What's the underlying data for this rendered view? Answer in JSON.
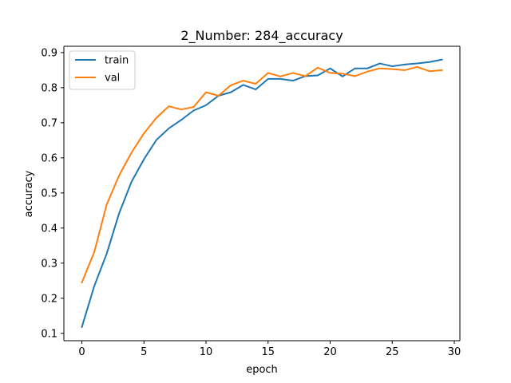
{
  "chart_data": {
    "type": "line",
    "title": "2_Number: 284_accuracy",
    "xlabel": "epoch",
    "ylabel": "accuracy",
    "xlim": [
      -1.45,
      30.45
    ],
    "ylim": [
      0.079,
      0.918
    ],
    "x_ticks": [
      0,
      5,
      10,
      15,
      20,
      25,
      30
    ],
    "y_ticks": [
      0.1,
      0.2,
      0.3,
      0.4,
      0.5,
      0.6,
      0.7,
      0.8,
      0.9
    ],
    "x_tick_labels": [
      "0",
      "5",
      "10",
      "15",
      "20",
      "25",
      "30"
    ],
    "y_tick_labels": [
      "0.1",
      "0.2",
      "0.3",
      "0.4",
      "0.5",
      "0.6",
      "0.7",
      "0.8",
      "0.9"
    ],
    "grid": false,
    "legend_position": "top-left",
    "x": [
      0,
      1,
      2,
      3,
      4,
      5,
      6,
      7,
      8,
      9,
      10,
      11,
      12,
      13,
      14,
      15,
      16,
      17,
      18,
      19,
      20,
      21,
      22,
      23,
      24,
      25,
      26,
      27,
      28,
      29
    ],
    "series": [
      {
        "name": "train",
        "color": "#1f77b4",
        "values": [
          0.118,
          0.235,
          0.327,
          0.442,
          0.532,
          0.596,
          0.651,
          0.684,
          0.708,
          0.735,
          0.75,
          0.777,
          0.787,
          0.808,
          0.795,
          0.825,
          0.825,
          0.82,
          0.833,
          0.835,
          0.855,
          0.832,
          0.855,
          0.855,
          0.869,
          0.861,
          0.866,
          0.869,
          0.873,
          0.88
        ]
      },
      {
        "name": "val",
        "color": "#ff7f0e",
        "values": [
          0.245,
          0.332,
          0.467,
          0.55,
          0.615,
          0.67,
          0.714,
          0.747,
          0.738,
          0.745,
          0.787,
          0.777,
          0.807,
          0.82,
          0.811,
          0.842,
          0.832,
          0.842,
          0.833,
          0.857,
          0.842,
          0.84,
          0.833,
          0.846,
          0.855,
          0.853,
          0.85,
          0.859,
          0.847,
          0.85
        ]
      }
    ]
  }
}
